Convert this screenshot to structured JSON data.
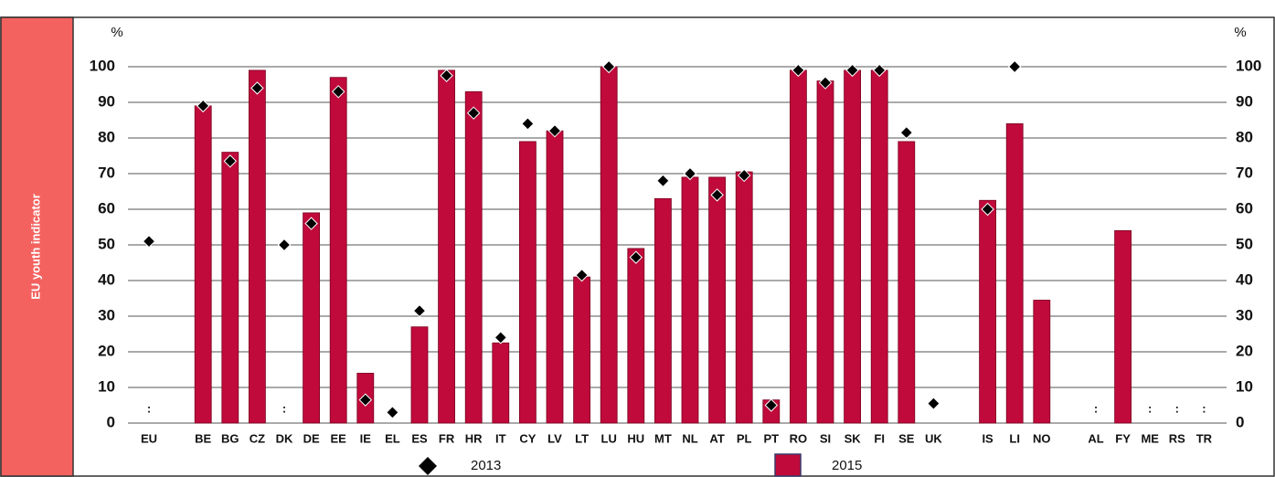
{
  "side_label": "EU youth indicator",
  "chart_data": {
    "type": "bar",
    "ylabel": "%",
    "y2label": "%",
    "categories": [
      "EU",
      null,
      "BE",
      "BG",
      "CZ",
      "DK",
      "DE",
      "EE",
      "IE",
      "EL",
      "ES",
      "FR",
      "HR",
      "IT",
      "CY",
      "LV",
      "LT",
      "LU",
      "HU",
      "MT",
      "NL",
      "AT",
      "PL",
      "PT",
      "RO",
      "SI",
      "SK",
      "FI",
      "SE",
      "UK",
      null,
      "IS",
      "LI",
      "NO",
      null,
      "AL",
      "FY",
      "ME",
      "RS",
      "TR"
    ],
    "series": [
      {
        "name": "2013",
        "type": "scatter",
        "color": "#000000",
        "values": [
          51,
          null,
          89,
          73.5,
          94,
          50,
          56,
          93,
          6.5,
          3,
          31.5,
          97.5,
          87,
          24,
          84,
          82,
          41.5,
          100,
          46.5,
          68,
          70,
          64,
          69.5,
          5,
          99,
          95.5,
          99,
          99,
          81.5,
          5.5,
          null,
          60,
          100,
          null,
          null,
          null,
          null,
          null,
          null,
          null
        ]
      },
      {
        "name": "2015",
        "type": "bar",
        "color": "#c00a3b",
        "values": [
          null,
          null,
          89,
          76,
          99,
          null,
          59,
          97,
          14,
          null,
          27,
          99,
          93,
          22.5,
          79,
          82,
          41,
          100,
          49,
          63,
          69,
          69,
          70.5,
          6.5,
          99,
          96,
          99,
          99,
          79,
          null,
          null,
          62.5,
          84,
          34.5,
          null,
          null,
          54,
          null,
          null,
          null
        ],
        "value_labels": [
          ":",
          null,
          null,
          null,
          null,
          ":",
          null,
          null,
          null,
          null,
          null,
          null,
          null,
          null,
          null,
          null,
          null,
          null,
          null,
          null,
          null,
          null,
          null,
          null,
          null,
          null,
          null,
          null,
          null,
          null,
          null,
          null,
          null,
          null,
          null,
          ":",
          null,
          ":",
          ":",
          ":"
        ]
      }
    ],
    "ylim": [
      0,
      100
    ],
    "yticks": [
      0,
      10,
      20,
      30,
      40,
      50,
      60,
      70,
      80,
      90,
      100
    ],
    "y2lim": [
      0,
      100
    ],
    "y2ticks": [
      0,
      10,
      20,
      30,
      40,
      50,
      60,
      70,
      80,
      90,
      100
    ],
    "grid": true,
    "legend": "bottom"
  }
}
